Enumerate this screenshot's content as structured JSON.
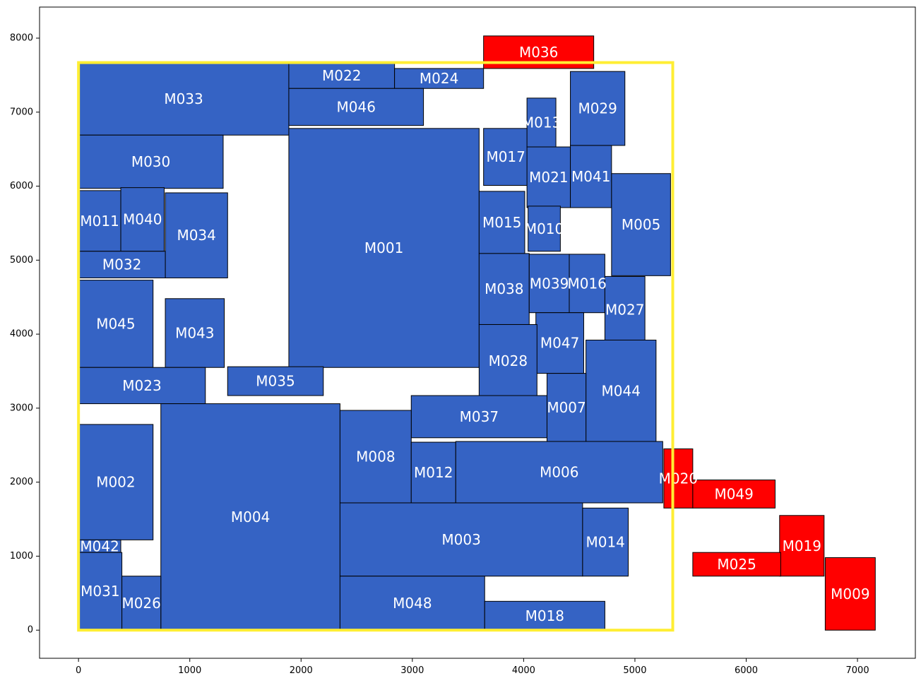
{
  "chart_data": {
    "type": "floorplan",
    "title": "",
    "xlabel": "",
    "ylabel": "",
    "xlim": [
      -350,
      7520
    ],
    "ylim": [
      -380,
      8420
    ],
    "xticks": [
      0,
      1000,
      2000,
      3000,
      4000,
      5000,
      6000,
      7000
    ],
    "yticks": [
      0,
      1000,
      2000,
      3000,
      4000,
      5000,
      6000,
      7000,
      8000
    ],
    "outline": {
      "x": 0,
      "y": 0,
      "w": 5340,
      "h": 7670,
      "color": "#ffee33"
    },
    "colors": {
      "inside": "#3563c4",
      "outside": "#ff0000",
      "edge": "#000000",
      "label": "#ffffff"
    },
    "blocks": [
      {
        "name": "M033",
        "x": 0,
        "y": 6690,
        "w": 1890,
        "h": 980,
        "status": "inside"
      },
      {
        "name": "M022",
        "x": 1890,
        "y": 7320,
        "w": 950,
        "h": 350,
        "status": "inside"
      },
      {
        "name": "M024",
        "x": 2840,
        "y": 7320,
        "w": 800,
        "h": 270,
        "status": "inside"
      },
      {
        "name": "M036",
        "x": 3640,
        "y": 7590,
        "w": 990,
        "h": 440,
        "status": "outside"
      },
      {
        "name": "M046",
        "x": 1890,
        "y": 6820,
        "w": 1210,
        "h": 500,
        "status": "inside"
      },
      {
        "name": "M030",
        "x": 0,
        "y": 5970,
        "w": 1300,
        "h": 720,
        "status": "inside"
      },
      {
        "name": "M001",
        "x": 1890,
        "y": 3550,
        "w": 1710,
        "h": 3230,
        "status": "inside"
      },
      {
        "name": "M017",
        "x": 3640,
        "y": 6010,
        "w": 400,
        "h": 770,
        "status": "inside"
      },
      {
        "name": "M013",
        "x": 4030,
        "y": 6530,
        "w": 260,
        "h": 660,
        "status": "inside"
      },
      {
        "name": "M029",
        "x": 4420,
        "y": 6550,
        "w": 490,
        "h": 1000,
        "status": "inside"
      },
      {
        "name": "M021",
        "x": 4030,
        "y": 5710,
        "w": 390,
        "h": 820,
        "status": "inside"
      },
      {
        "name": "M041",
        "x": 4420,
        "y": 5710,
        "w": 370,
        "h": 840,
        "status": "inside"
      },
      {
        "name": "M011",
        "x": 0,
        "y": 5120,
        "w": 380,
        "h": 820,
        "status": "inside"
      },
      {
        "name": "M040",
        "x": 380,
        "y": 5120,
        "w": 390,
        "h": 860,
        "status": "inside"
      },
      {
        "name": "M034",
        "x": 780,
        "y": 4760,
        "w": 560,
        "h": 1150,
        "status": "inside"
      },
      {
        "name": "M015",
        "x": 3600,
        "y": 5090,
        "w": 410,
        "h": 840,
        "status": "inside"
      },
      {
        "name": "M010",
        "x": 4040,
        "y": 5120,
        "w": 290,
        "h": 610,
        "status": "inside"
      },
      {
        "name": "M005",
        "x": 4790,
        "y": 4790,
        "w": 530,
        "h": 1380,
        "status": "inside"
      },
      {
        "name": "M032",
        "x": 0,
        "y": 4760,
        "w": 780,
        "h": 360,
        "status": "inside"
      },
      {
        "name": "M038",
        "x": 3600,
        "y": 4130,
        "w": 450,
        "h": 960,
        "status": "inside"
      },
      {
        "name": "M039",
        "x": 4050,
        "y": 4290,
        "w": 360,
        "h": 790,
        "status": "inside"
      },
      {
        "name": "M016",
        "x": 4410,
        "y": 4290,
        "w": 320,
        "h": 790,
        "status": "inside"
      },
      {
        "name": "M045",
        "x": 0,
        "y": 3550,
        "w": 670,
        "h": 1180,
        "status": "inside"
      },
      {
        "name": "M043",
        "x": 780,
        "y": 3550,
        "w": 530,
        "h": 930,
        "status": "inside"
      },
      {
        "name": "M027",
        "x": 4730,
        "y": 3880,
        "w": 360,
        "h": 900,
        "status": "inside"
      },
      {
        "name": "M047",
        "x": 4110,
        "y": 3470,
        "w": 430,
        "h": 820,
        "status": "inside"
      },
      {
        "name": "M028",
        "x": 3600,
        "y": 3150,
        "w": 520,
        "h": 980,
        "status": "inside"
      },
      {
        "name": "M044",
        "x": 4560,
        "y": 2550,
        "w": 630,
        "h": 1370,
        "status": "inside"
      },
      {
        "name": "M023",
        "x": 0,
        "y": 3060,
        "w": 1140,
        "h": 490,
        "status": "inside"
      },
      {
        "name": "M035",
        "x": 1340,
        "y": 3170,
        "w": 860,
        "h": 390,
        "status": "inside"
      },
      {
        "name": "M007",
        "x": 4210,
        "y": 2550,
        "w": 350,
        "h": 920,
        "status": "inside"
      },
      {
        "name": "M037",
        "x": 2990,
        "y": 2600,
        "w": 1220,
        "h": 570,
        "status": "inside"
      },
      {
        "name": "M004",
        "x": 740,
        "y": 0,
        "w": 1610,
        "h": 3060,
        "status": "inside"
      },
      {
        "name": "M008",
        "x": 2350,
        "y": 1720,
        "w": 640,
        "h": 1250,
        "status": "inside"
      },
      {
        "name": "M002",
        "x": 0,
        "y": 1220,
        "w": 670,
        "h": 1560,
        "status": "inside"
      },
      {
        "name": "M012",
        "x": 2990,
        "y": 1720,
        "w": 400,
        "h": 820,
        "status": "inside"
      },
      {
        "name": "M006",
        "x": 3390,
        "y": 1720,
        "w": 1860,
        "h": 830,
        "status": "inside"
      },
      {
        "name": "M020",
        "x": 5260,
        "y": 1650,
        "w": 260,
        "h": 800,
        "status": "outside"
      },
      {
        "name": "M049",
        "x": 5520,
        "y": 1650,
        "w": 740,
        "h": 380,
        "status": "outside"
      },
      {
        "name": "M003",
        "x": 2350,
        "y": 730,
        "w": 2180,
        "h": 990,
        "status": "inside"
      },
      {
        "name": "M014",
        "x": 4530,
        "y": 730,
        "w": 410,
        "h": 920,
        "status": "inside"
      },
      {
        "name": "M019",
        "x": 6300,
        "y": 730,
        "w": 400,
        "h": 820,
        "status": "outside"
      },
      {
        "name": "M025",
        "x": 5520,
        "y": 730,
        "w": 790,
        "h": 320,
        "status": "outside"
      },
      {
        "name": "M009",
        "x": 6710,
        "y": 0,
        "w": 450,
        "h": 980,
        "status": "outside"
      },
      {
        "name": "M042",
        "x": 0,
        "y": 1050,
        "w": 380,
        "h": 170,
        "status": "inside"
      },
      {
        "name": "M031",
        "x": 0,
        "y": 0,
        "w": 390,
        "h": 1050,
        "status": "inside"
      },
      {
        "name": "M026",
        "x": 390,
        "y": 0,
        "w": 350,
        "h": 730,
        "status": "inside"
      },
      {
        "name": "M048",
        "x": 2350,
        "y": 0,
        "w": 1300,
        "h": 730,
        "status": "inside"
      },
      {
        "name": "M018",
        "x": 3650,
        "y": 0,
        "w": 1080,
        "h": 390,
        "status": "inside"
      }
    ]
  }
}
